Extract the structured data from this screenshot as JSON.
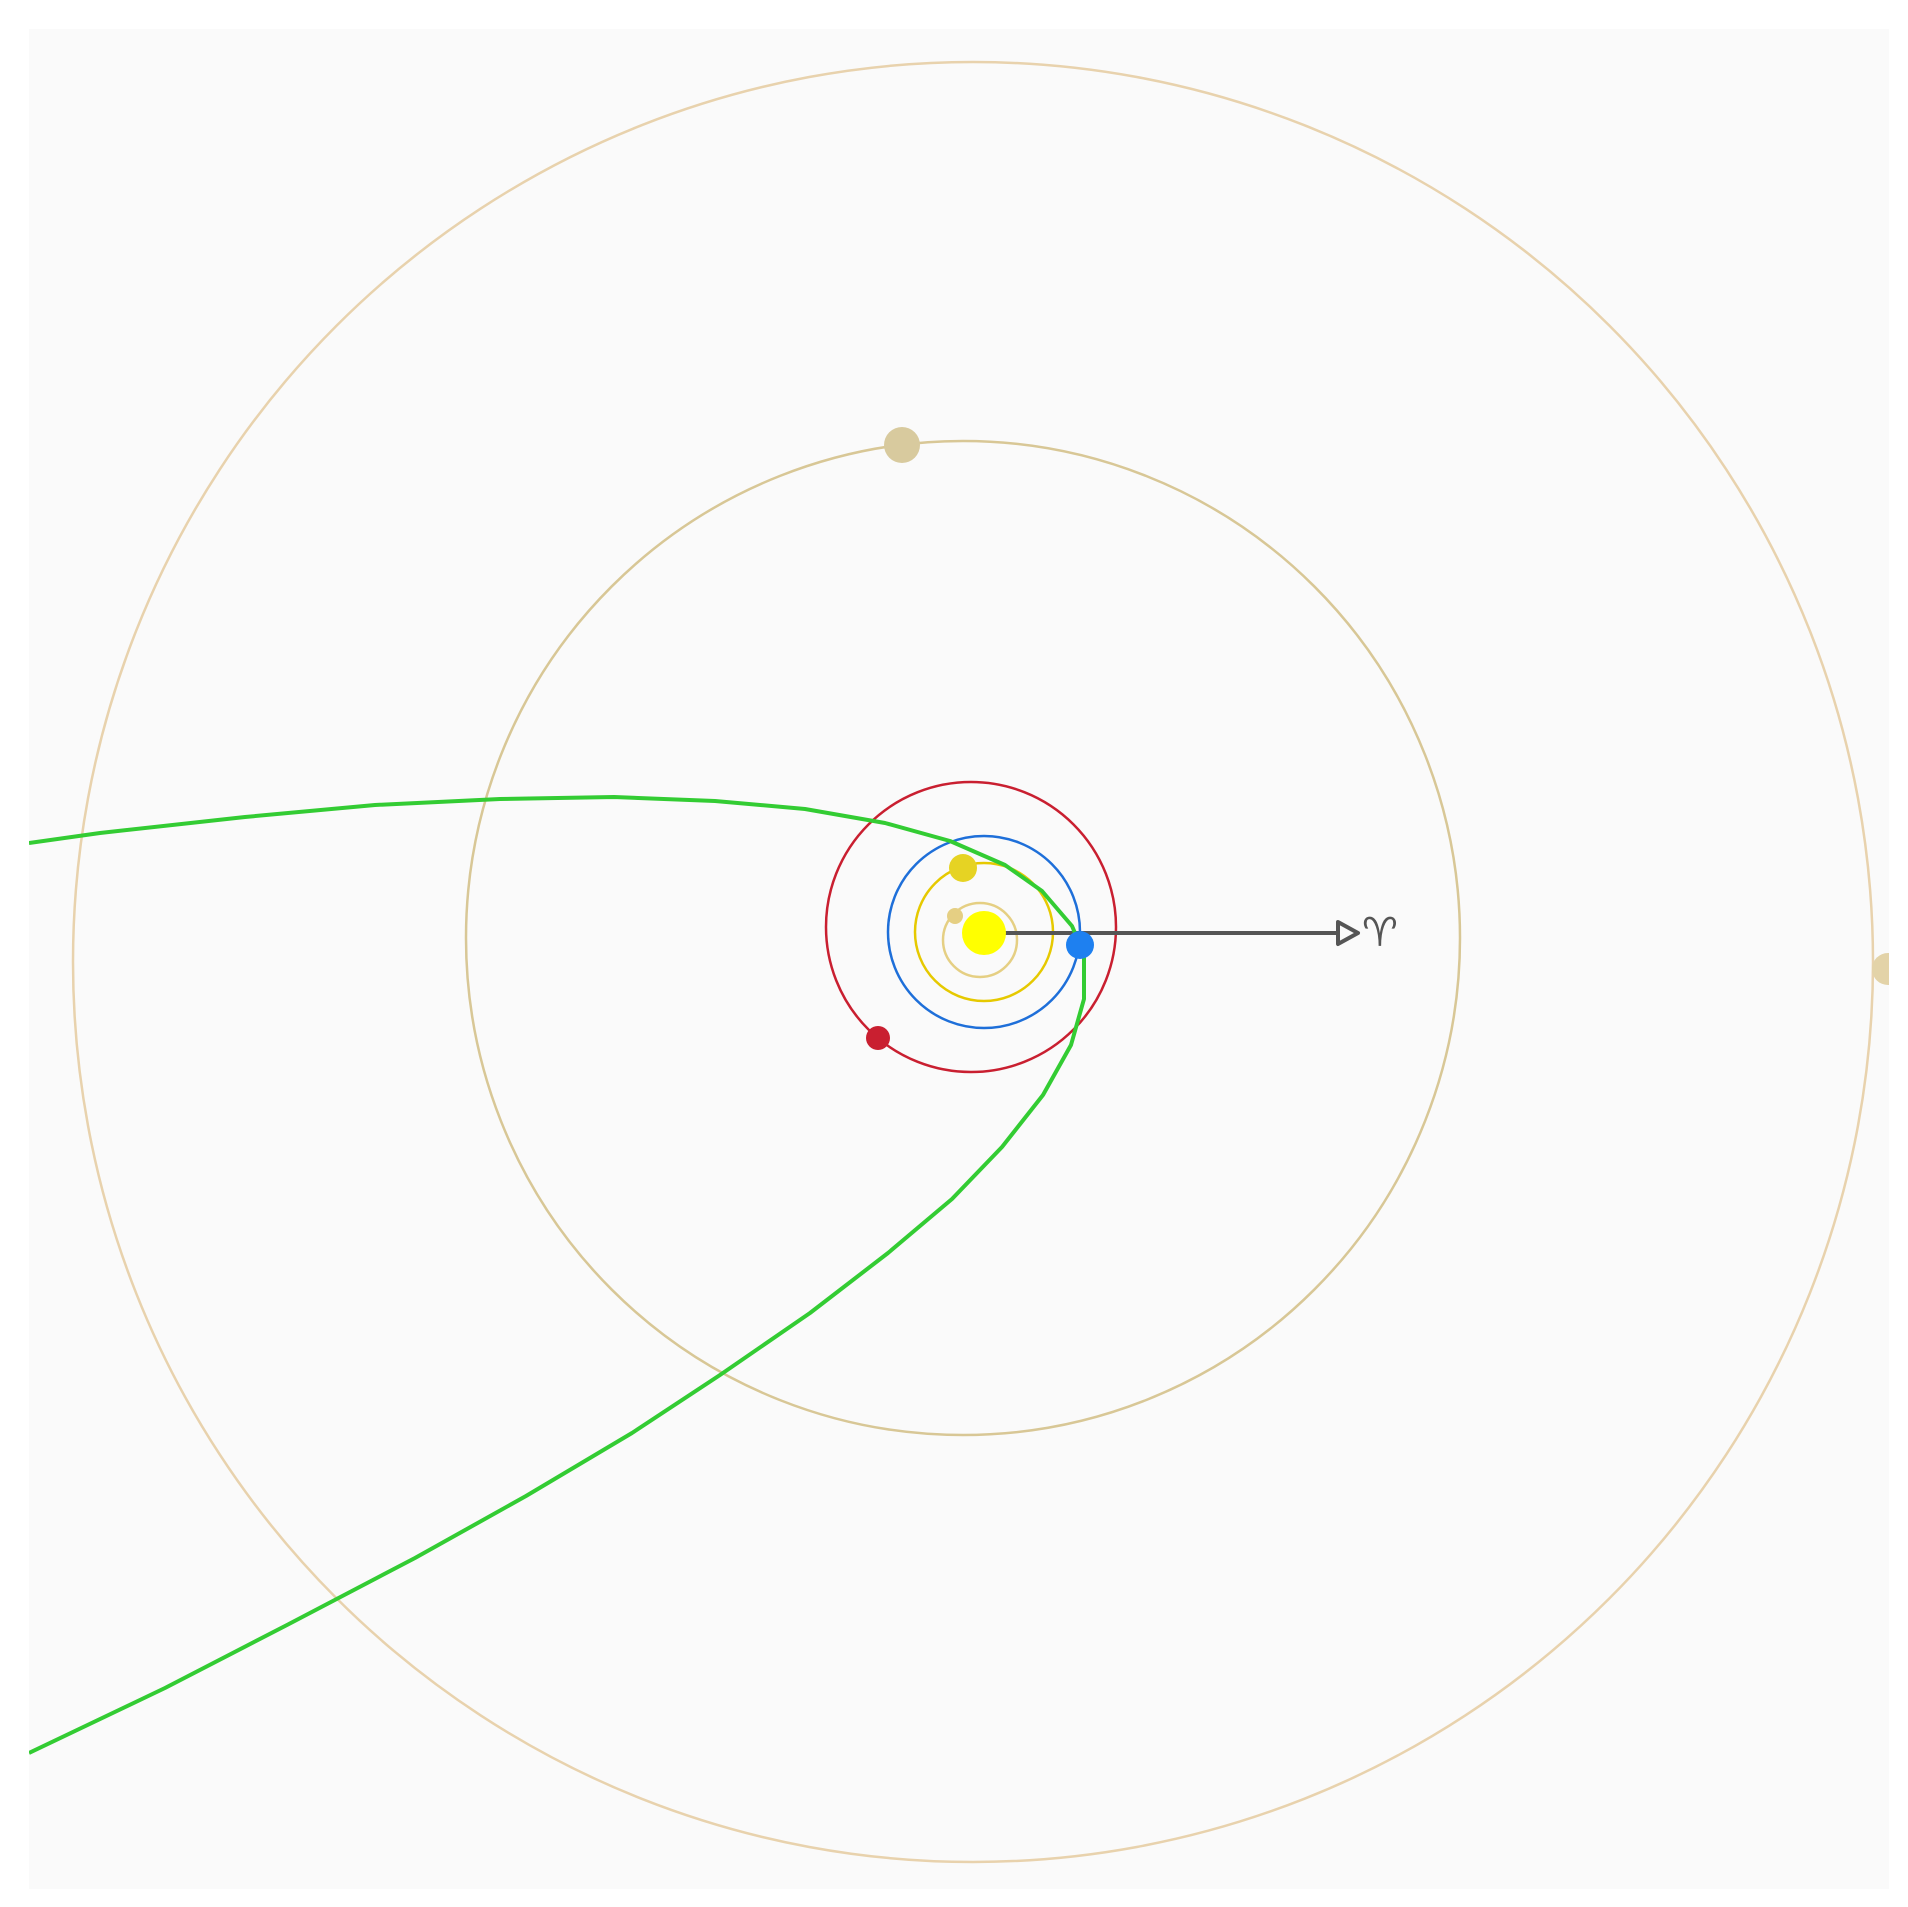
{
  "diagram": {
    "background": "#fafafa",
    "sun": {
      "name": "sun",
      "color": "#ffff00"
    },
    "vernal_equinox": {
      "symbol": "♈",
      "color": "#555555"
    },
    "orbits": [
      {
        "name": "mercury",
        "orbit_color": "#e5cf83",
        "planet_color": "#e5cf83"
      },
      {
        "name": "venus",
        "orbit_color": "#e6c900",
        "planet_color": "#e6d323"
      },
      {
        "name": "earth",
        "orbit_color": "#1e6fd9",
        "planet_color": "#1e80f0"
      },
      {
        "name": "mars",
        "orbit_color": "#c91f30",
        "planet_color": "#c91f30"
      },
      {
        "name": "jupiter",
        "orbit_color": "#d8c796",
        "planet_color": "#d8ca9e"
      },
      {
        "name": "saturn",
        "orbit_color": "#e8d2ad",
        "planet_color": "#e3d3a8"
      }
    ],
    "trajectory": {
      "name": "spacecraft-trajectory",
      "color": "#33cc33"
    }
  }
}
